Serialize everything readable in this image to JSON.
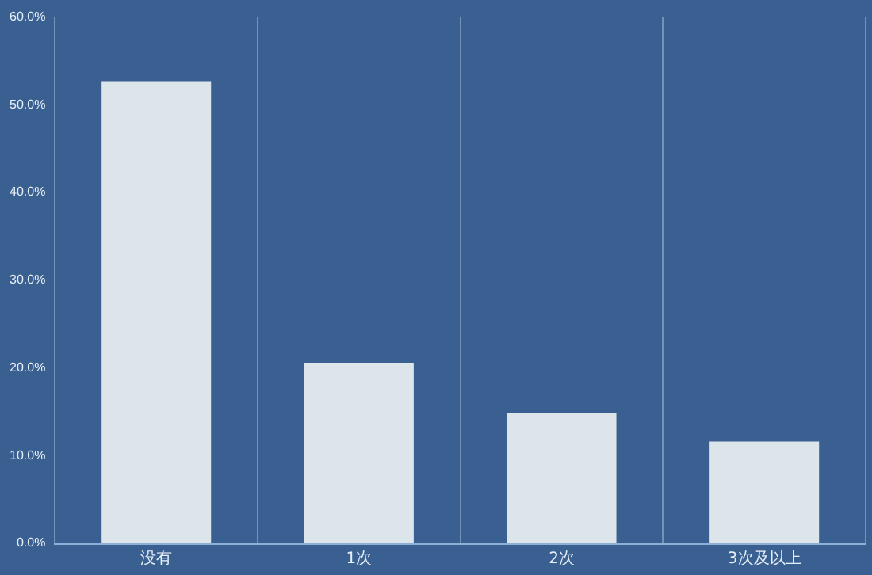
{
  "chart_data": {
    "type": "bar",
    "categories": [
      "没有",
      "1次",
      "2次",
      "3次及以上"
    ],
    "values": [
      52.7,
      20.6,
      14.9,
      11.6
    ],
    "color": "#dce5ea",
    "ylim": [
      0,
      60
    ],
    "yticks": [
      {
        "value": 0,
        "label": "0.0%"
      },
      {
        "value": 10,
        "label": "10.0%"
      },
      {
        "value": 20,
        "label": "20.0%"
      },
      {
        "value": 30,
        "label": "30.0%"
      },
      {
        "value": 40,
        "label": "40.0%"
      },
      {
        "value": 50,
        "label": "50.0%"
      },
      {
        "value": 60,
        "label": "60.0%"
      }
    ],
    "grid": "x",
    "legend": false
  }
}
